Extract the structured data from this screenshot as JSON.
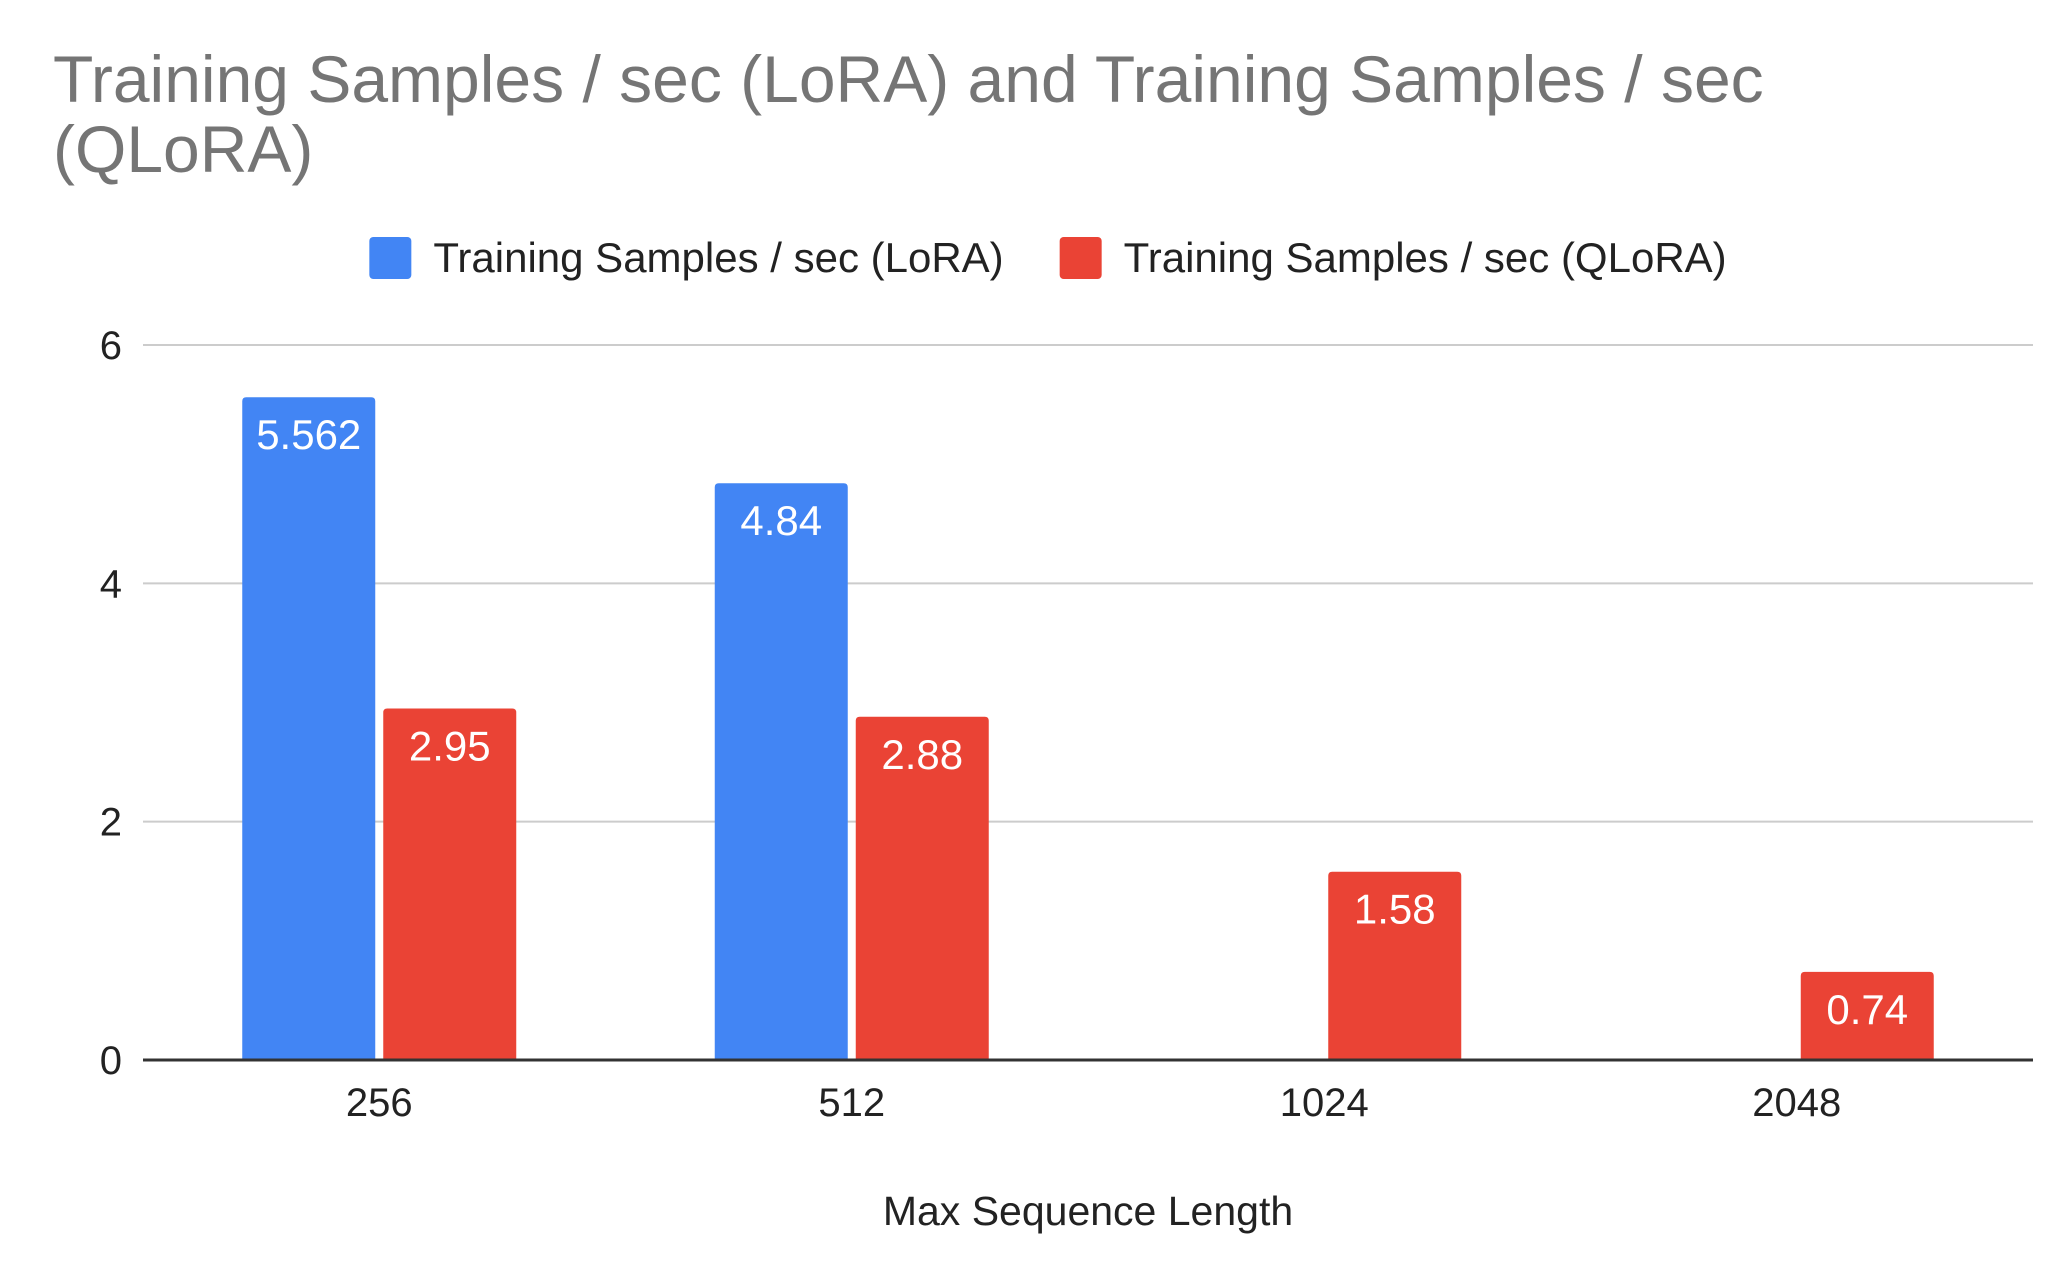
{
  "chart_data": {
    "type": "bar",
    "title": "Training Samples / sec (LoRA) and Training Samples / sec (QLoRA)",
    "xlabel": "Max Sequence Length",
    "ylabel": "",
    "categories": [
      "256",
      "512",
      "1024",
      "2048"
    ],
    "series": [
      {
        "name": "Training Samples / sec (LoRA)",
        "color": "#4285f4",
        "values": [
          5.562,
          4.84,
          null,
          null
        ],
        "labels": [
          "5.562",
          "4.84",
          "",
          ""
        ]
      },
      {
        "name": "Training Samples / sec (QLoRA)",
        "color": "#ea4335",
        "values": [
          2.95,
          2.88,
          1.58,
          0.74
        ],
        "labels": [
          "2.95",
          "2.88",
          "1.58",
          "0.74"
        ]
      }
    ],
    "ylim": [
      0,
      6
    ],
    "yticks": [
      0,
      2,
      4,
      6
    ],
    "grid": true,
    "legend_position": "top"
  }
}
